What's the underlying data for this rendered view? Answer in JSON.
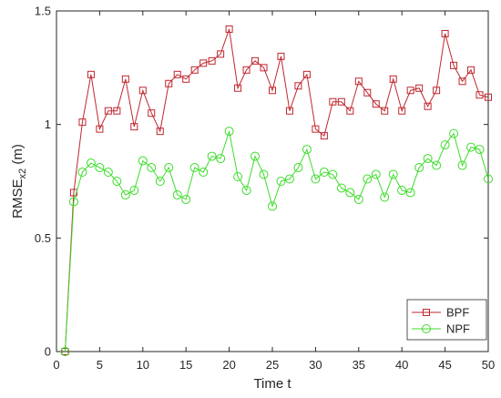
{
  "chart_data": {
    "type": "line",
    "xlabel": "Time t",
    "ylabel_main": "RMSE",
    "ylabel_sub": "x2",
    "ylabel_unit": " (m)",
    "xlim": [
      0,
      50
    ],
    "ylim": [
      0,
      1.5
    ],
    "x_ticks": [
      0,
      5,
      10,
      15,
      20,
      25,
      30,
      35,
      40,
      45,
      50
    ],
    "y_ticks": [
      0,
      0.5,
      1,
      1.5
    ],
    "y_tick_labels": [
      "0",
      "0.5",
      "1",
      "1.5"
    ],
    "grid": false,
    "legend_position": "bottom-right",
    "x": [
      1,
      2,
      3,
      4,
      5,
      6,
      7,
      8,
      9,
      10,
      11,
      12,
      13,
      14,
      15,
      16,
      17,
      18,
      19,
      20,
      21,
      22,
      23,
      24,
      25,
      26,
      27,
      28,
      29,
      30,
      31,
      32,
      33,
      34,
      35,
      36,
      37,
      38,
      39,
      40,
      41,
      42,
      43,
      44,
      45,
      46,
      47,
      48,
      49,
      50
    ],
    "series": [
      {
        "name": "BPF",
        "color": "#c0262d",
        "marker": "square",
        "values": [
          0.0,
          0.7,
          1.01,
          1.22,
          0.98,
          1.06,
          1.06,
          1.2,
          0.99,
          1.15,
          1.05,
          0.97,
          1.18,
          1.22,
          1.2,
          1.24,
          1.27,
          1.28,
          1.31,
          1.42,
          1.16,
          1.24,
          1.28,
          1.25,
          1.15,
          1.3,
          1.06,
          1.17,
          1.22,
          0.98,
          0.95,
          1.1,
          1.1,
          1.06,
          1.19,
          1.14,
          1.09,
          1.06,
          1.2,
          1.06,
          1.15,
          1.16,
          1.08,
          1.15,
          1.4,
          1.26,
          1.19,
          1.24,
          1.13,
          1.12
        ]
      },
      {
        "name": "NPF",
        "color": "#3ddc2a",
        "marker": "circle",
        "values": [
          0.0,
          0.66,
          0.79,
          0.83,
          0.81,
          0.79,
          0.75,
          0.69,
          0.71,
          0.84,
          0.81,
          0.75,
          0.81,
          0.69,
          0.67,
          0.81,
          0.79,
          0.86,
          0.85,
          0.97,
          0.77,
          0.71,
          0.86,
          0.78,
          0.64,
          0.75,
          0.76,
          0.81,
          0.89,
          0.76,
          0.79,
          0.78,
          0.72,
          0.7,
          0.67,
          0.76,
          0.78,
          0.68,
          0.78,
          0.71,
          0.7,
          0.81,
          0.85,
          0.82,
          0.91,
          0.96,
          0.82,
          0.9,
          0.89,
          0.76
        ]
      }
    ]
  }
}
